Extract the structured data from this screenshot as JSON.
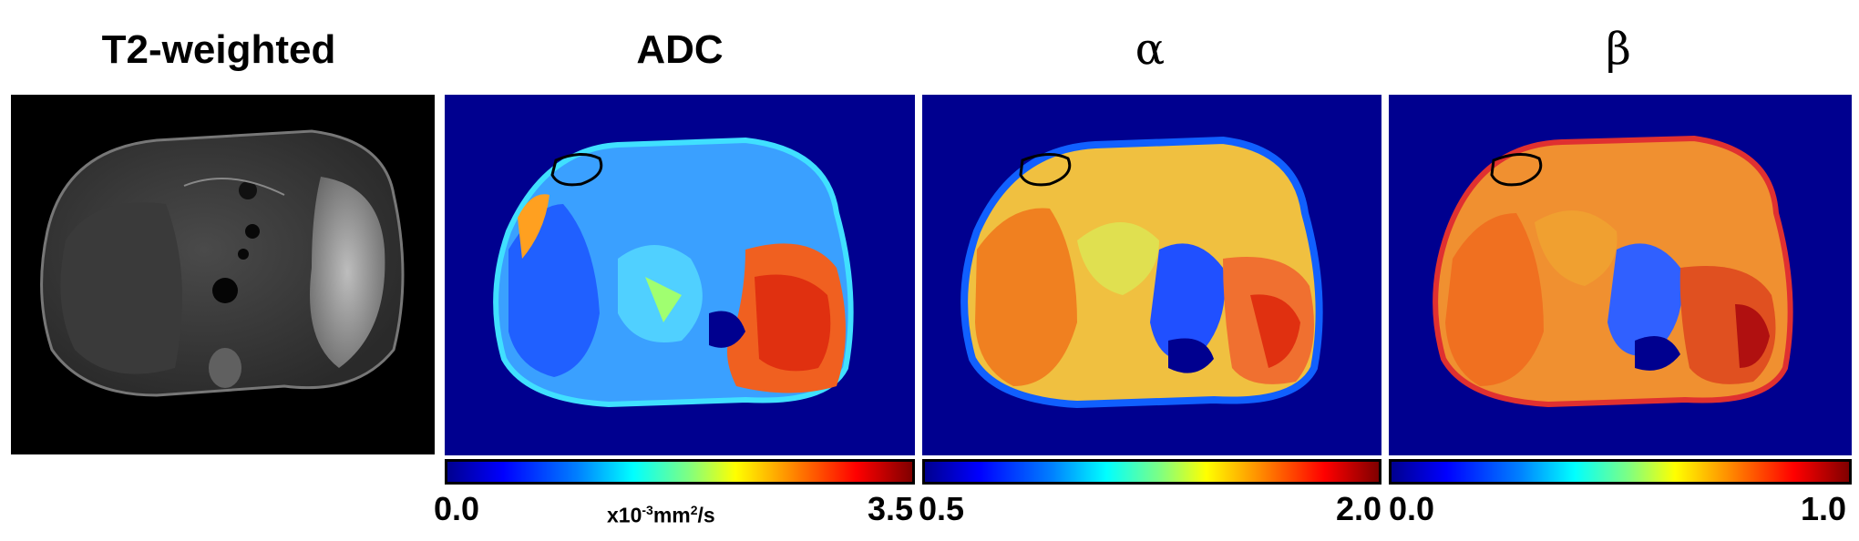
{
  "panels": [
    {
      "title": "T2-weighted"
    },
    {
      "title": "ADC",
      "colorbar": {
        "min": "0.0",
        "max": "3.5",
        "unit_prefix": "x10",
        "unit_exp1": "-3",
        "unit_mid": "mm",
        "unit_exp2": "2",
        "unit_suffix": "/s"
      }
    },
    {
      "title": "α",
      "colorbar": {
        "min": "0.5",
        "max": "2.0"
      }
    },
    {
      "title": "β",
      "colorbar": {
        "min": "0.0",
        "max": "1.0"
      }
    }
  ],
  "colormap": "jet",
  "colors": {
    "map_background": "#00008f",
    "roi_outline": "#000000"
  }
}
